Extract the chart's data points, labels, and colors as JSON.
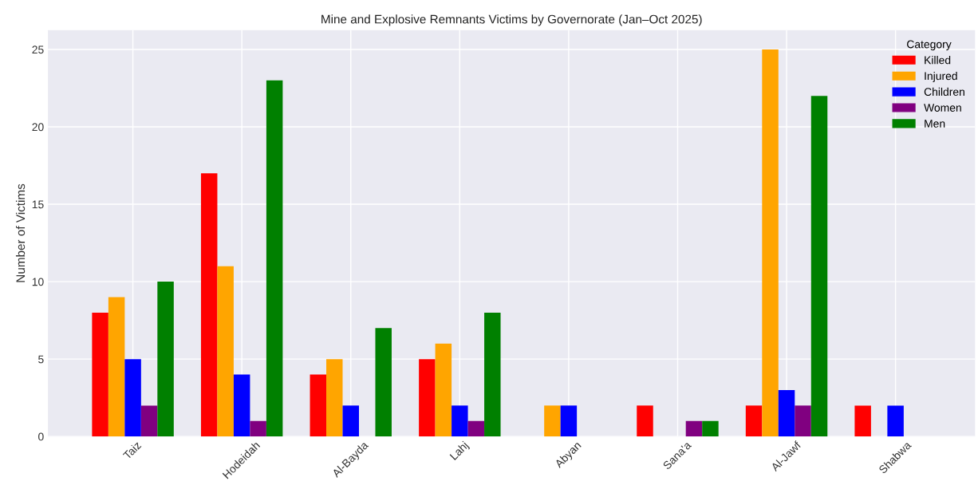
{
  "chart_data": {
    "type": "bar",
    "title": "Mine and Explosive Remnants Victims by Governorate (Jan–Oct 2025)",
    "ylabel": "Number of Victims",
    "categories": [
      "Taiz",
      "Hodeidah",
      "Al-Bayda",
      "Lahj",
      "Abyan",
      "Sana'a",
      "Al-Jawf",
      "Shabwa"
    ],
    "series": [
      {
        "name": "Killed",
        "color": "#ff0000",
        "values": [
          8,
          17,
          4,
          5,
          0,
          2,
          2,
          2
        ]
      },
      {
        "name": "Injured",
        "color": "#ffa500",
        "values": [
          9,
          11,
          5,
          6,
          2,
          0,
          25,
          0
        ]
      },
      {
        "name": "Children",
        "color": "#0000ff",
        "values": [
          5,
          4,
          2,
          2,
          2,
          0,
          3,
          2
        ]
      },
      {
        "name": "Women",
        "color": "#800080",
        "values": [
          2,
          1,
          0,
          1,
          0,
          1,
          2,
          0
        ]
      },
      {
        "name": "Men",
        "color": "#008000",
        "values": [
          10,
          23,
          7,
          8,
          0,
          1,
          22,
          0
        ]
      }
    ],
    "legend_title": "Category",
    "legend": "top right",
    "grid": true,
    "ylim": [
      0,
      26.25
    ],
    "yticks": [
      0,
      5,
      10,
      15,
      20,
      25
    ]
  }
}
